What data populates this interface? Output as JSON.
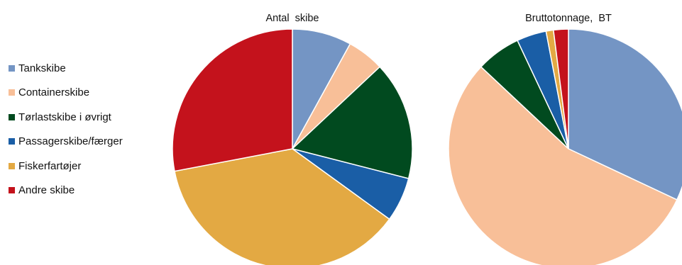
{
  "legend": [
    {
      "label": "Tankskibe",
      "color": "#7495c4"
    },
    {
      "label": "Containerskibe",
      "color": "#f8bf98"
    },
    {
      "label": "Tørlastskibe  i øvrigt",
      "color": "#014a1f"
    },
    {
      "label": "Passagerskibe/færger",
      "color": "#1a5ea6"
    },
    {
      "label": "Fiskerfartøjer",
      "color": "#e3a943"
    },
    {
      "label": "Andre skibe",
      "color": "#c4121c"
    }
  ],
  "chart_data": [
    {
      "type": "pie",
      "title": "Antal  skibe",
      "categories": [
        "Tankskibe",
        "Containerskibe",
        "Tørlastskibe  i øvrigt",
        "Passagerskibe/færger",
        "Fiskerfartøjer",
        "Andre skibe"
      ],
      "values": [
        8,
        5,
        16,
        6,
        37,
        28
      ],
      "colors": [
        "#7495c4",
        "#f8bf98",
        "#014a1f",
        "#1a5ea6",
        "#e3a943",
        "#c4121c"
      ]
    },
    {
      "type": "pie",
      "title": "Bruttotonnage,  BT",
      "categories": [
        "Tankskibe",
        "Containerskibe",
        "Tørlastskibe  i øvrigt",
        "Passagerskibe/færger",
        "Fiskerfartøjer",
        "Andre skibe"
      ],
      "values": [
        32,
        55,
        6,
        4,
        1,
        2
      ],
      "colors": [
        "#7495c4",
        "#f8bf98",
        "#014a1f",
        "#1a5ea6",
        "#e3a943",
        "#c4121c"
      ]
    }
  ]
}
